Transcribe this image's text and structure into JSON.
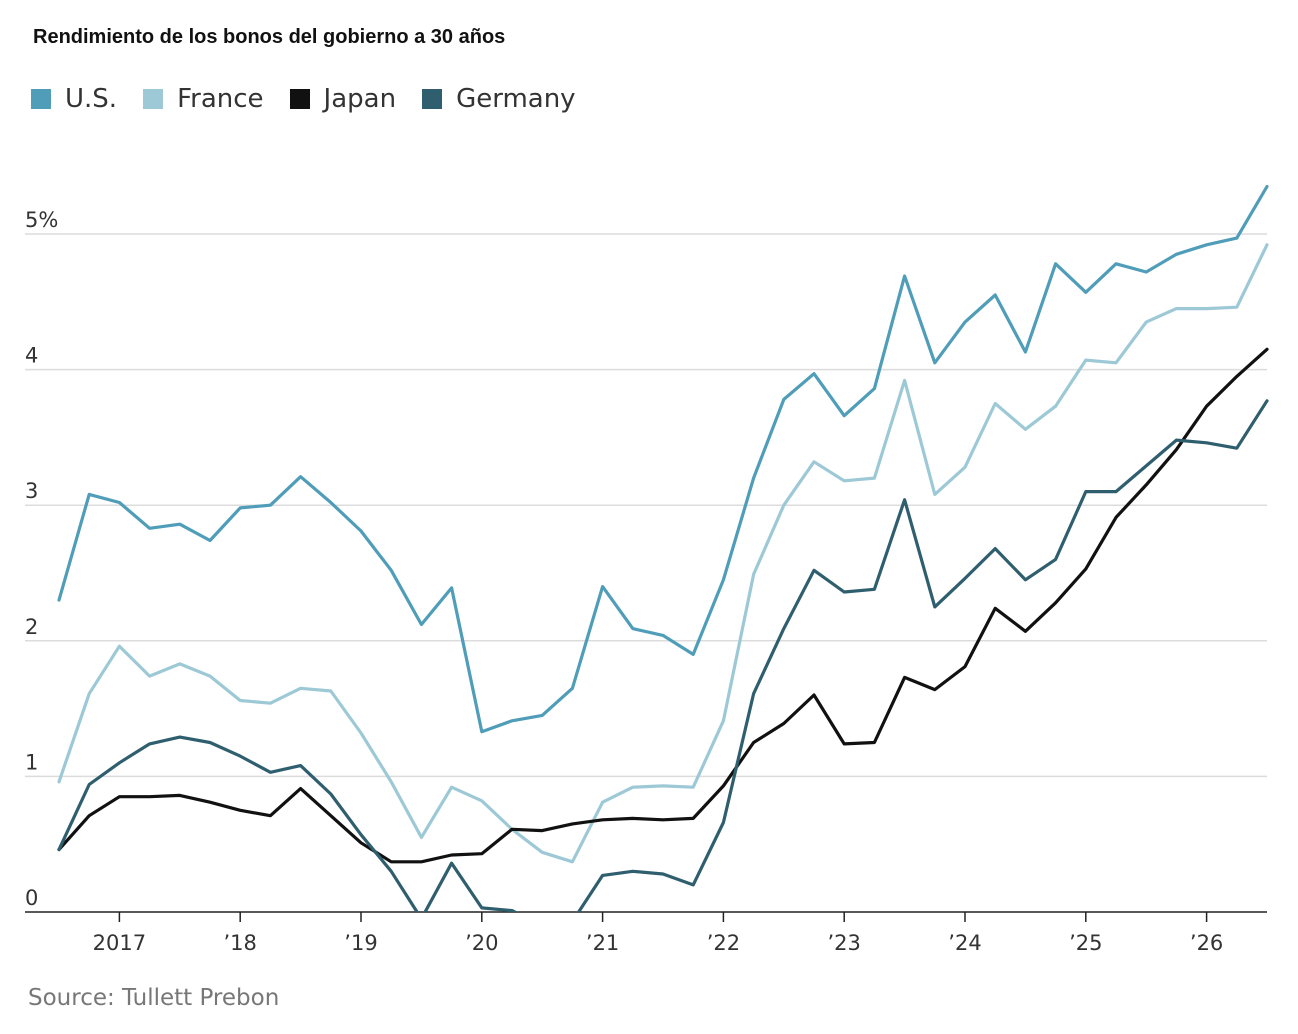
{
  "title": "Rendimiento de los bonos del gobierno a 30 años",
  "source": "Source: Tullett Prebon",
  "chart_data": {
    "type": "line",
    "title": "Rendimiento de los bonos del gobierno a 30 años",
    "xlim": [
      2016.5,
      2026.5
    ],
    "ylim": [
      0,
      5.5
    ],
    "grid": true,
    "legend_position": "top-left",
    "y_ticks": [
      {
        "value": 0,
        "label": "0"
      },
      {
        "value": 1,
        "label": "1"
      },
      {
        "value": 2,
        "label": "2"
      },
      {
        "value": 3,
        "label": "3"
      },
      {
        "value": 4,
        "label": "4"
      },
      {
        "value": 5,
        "label": "5%"
      }
    ],
    "x_ticks": [
      {
        "value": 2017,
        "label": "2017"
      },
      {
        "value": 2018,
        "label": "’18"
      },
      {
        "value": 2019,
        "label": "’19"
      },
      {
        "value": 2020,
        "label": "’20"
      },
      {
        "value": 2021,
        "label": "’21"
      },
      {
        "value": 2022,
        "label": "’22"
      },
      {
        "value": 2023,
        "label": "’23"
      },
      {
        "value": 2024,
        "label": "’24"
      },
      {
        "value": 2025,
        "label": "’25"
      },
      {
        "value": 2026,
        "label": "’26"
      }
    ],
    "x": [
      2016.5,
      2016.75,
      2017.0,
      2017.25,
      2017.5,
      2017.75,
      2018.0,
      2018.25,
      2018.5,
      2018.75,
      2019.0,
      2019.25,
      2019.5,
      2019.75,
      2020.0,
      2020.25,
      2020.5,
      2020.75,
      2021.0,
      2021.25,
      2021.5,
      2021.75,
      2022.0,
      2022.25,
      2022.5,
      2022.75,
      2023.0,
      2023.25,
      2023.5,
      2023.75,
      2024.0,
      2024.25,
      2024.5,
      2024.75,
      2025.0,
      2025.25,
      2025.5,
      2025.75,
      2026.0,
      2026.25,
      2026.5
    ],
    "series": [
      {
        "name": "U.S.",
        "color": "#4f9db8",
        "values": [
          2.3,
          3.08,
          3.02,
          2.83,
          2.86,
          2.74,
          2.98,
          3.0,
          3.21,
          3.02,
          2.81,
          2.52,
          2.12,
          2.39,
          1.33,
          1.41,
          1.45,
          1.65,
          2.4,
          2.09,
          2.04,
          1.9,
          2.45,
          3.2,
          3.78,
          3.97,
          3.66,
          3.86,
          4.69,
          4.05,
          4.35,
          4.55,
          4.13,
          4.78,
          4.57,
          4.78,
          4.72,
          4.85,
          4.92,
          4.97,
          5.35
        ]
      },
      {
        "name": "France",
        "color": "#9dc9d7",
        "values": [
          0.96,
          1.61,
          1.96,
          1.74,
          1.83,
          1.74,
          1.56,
          1.54,
          1.65,
          1.63,
          1.32,
          0.96,
          0.55,
          0.92,
          0.82,
          0.61,
          0.44,
          0.37,
          0.81,
          0.92,
          0.93,
          0.92,
          1.41,
          2.49,
          3.0,
          3.32,
          3.18,
          3.2,
          3.92,
          3.08,
          3.28,
          3.75,
          3.56,
          3.73,
          4.07,
          4.05,
          4.35,
          4.45,
          4.45,
          4.46,
          4.92
        ]
      },
      {
        "name": "Japan",
        "color": "#111111",
        "values": [
          0.46,
          0.71,
          0.85,
          0.85,
          0.86,
          0.81,
          0.75,
          0.71,
          0.91,
          0.71,
          0.51,
          0.37,
          0.37,
          0.42,
          0.43,
          0.61,
          0.6,
          0.65,
          0.68,
          0.69,
          0.68,
          0.69,
          0.93,
          1.25,
          1.39,
          1.6,
          1.24,
          1.25,
          1.73,
          1.64,
          1.81,
          2.24,
          2.07,
          2.28,
          2.53,
          2.91,
          3.15,
          3.41,
          3.73,
          3.95,
          4.15
        ]
      },
      {
        "name": "Germany",
        "color": "#2f5f6e",
        "values": [
          0.46,
          0.94,
          1.1,
          1.24,
          1.29,
          1.25,
          1.15,
          1.03,
          1.08,
          0.87,
          0.57,
          0.3,
          -0.05,
          0.36,
          0.03,
          0.01,
          -0.1,
          -0.07,
          0.27,
          0.3,
          0.28,
          0.2,
          0.66,
          1.61,
          2.09,
          2.52,
          2.36,
          2.38,
          3.04,
          2.25,
          2.46,
          2.68,
          2.45,
          2.6,
          3.1,
          3.1,
          3.29,
          3.48,
          3.46,
          3.42,
          3.77
        ]
      }
    ]
  }
}
